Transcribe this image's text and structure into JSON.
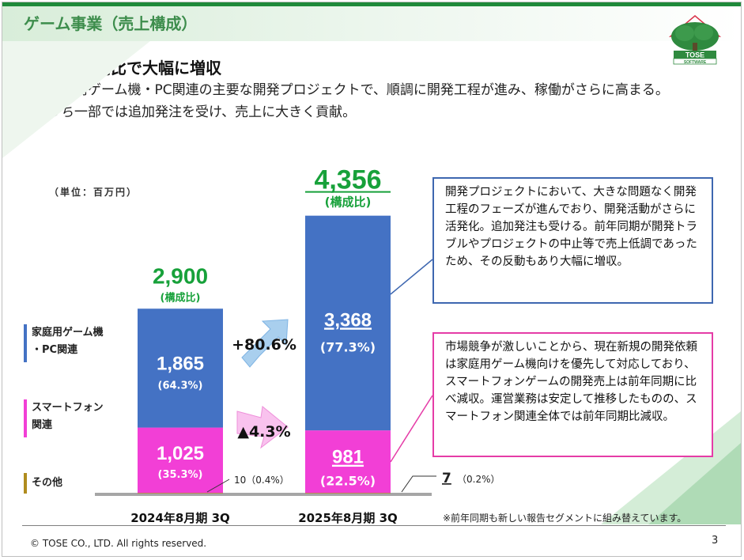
{
  "slide": {
    "title": "ゲーム事業（売上構成）",
    "headline": "前年同期比で大幅に増収",
    "description": "家庭用ゲーム機・PC関連の主要な開発プロジェクトで、順調に開発工程が進み、稼働がさらに高まる。うち一部では追加発注を受け、売上に大きく貢献。",
    "unit": "（単位：百万円）",
    "footnote": "※前年同期も新しい報告セグメントに組み替えています。",
    "copyright": "© TOSE CO., LTD. All rights reserved.",
    "page_number": "3",
    "logo_text": "TOSE",
    "logo_sub": "SOFTWARE"
  },
  "colors": {
    "console_pc": "#4472c4",
    "smartphone": "#f23fd6",
    "other": "#b08c1e",
    "total": "#17a13a",
    "brand_green": "#1f8a3a"
  },
  "legend": {
    "console_pc": [
      "家庭用ゲーム機",
      "・PC関連"
    ],
    "smartphone": [
      "スマートフォン",
      "関連"
    ],
    "other": "その他"
  },
  "notes": {
    "console_pc": "開発プロジェクトにおいて、大きな問題なく開発工程のフェーズが進んでおり、開発活動がさらに活発化。追加発注も受ける。前年同期が開発トラブルやプロジェクトの中止等で売上低調であったため、その反動もあり大幅に増収。",
    "smartphone": "市場競争が激しいことから、現在新規の開発依頼は家庭用ゲーム機向けを優先して対応しており、スマートフォンゲームの開発売上は前年同期に比べ減収。運営業務は安定して推移したものの、スマートフォン関連全体では前年同期比減収。"
  },
  "chart_data": {
    "type": "bar",
    "stacked": true,
    "title": "",
    "ylabel": "百万円",
    "categories": [
      "2024年8月期 3Q",
      "2025年8月期 3Q"
    ],
    "series": [
      {
        "name": "その他",
        "values": [
          10,
          7
        ],
        "labels": [
          "10（0.4%）",
          "7（0.2%）"
        ]
      },
      {
        "name": "スマートフォン関連",
        "values": [
          1025,
          981
        ],
        "value_labels": [
          "1,025",
          "981"
        ],
        "share_labels": [
          "(35.3%)",
          "(22.5%)"
        ]
      },
      {
        "name": "家庭用ゲーム機・PC関連",
        "values": [
          1865,
          3368
        ],
        "value_labels": [
          "1,865",
          "3,368"
        ],
        "share_labels": [
          "(64.3%)",
          "(77.3%)"
        ]
      }
    ],
    "totals": [
      2900,
      4356
    ],
    "total_labels": [
      "2,900",
      "4,356"
    ],
    "total_sublabel": "(構成比)",
    "yoy": [
      {
        "series": "家庭用ゲーム機・PC関連",
        "label": "+80.6%"
      },
      {
        "series": "スマートフォン関連",
        "label": "▲4.3%"
      }
    ],
    "ylim": [
      0,
      4800
    ]
  }
}
